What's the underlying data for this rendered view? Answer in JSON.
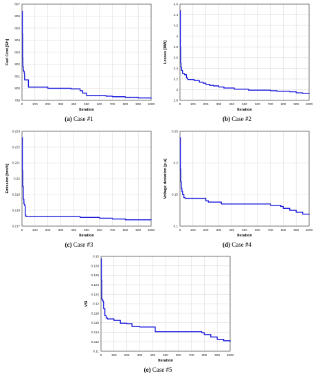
{
  "colors": {
    "line": "#1a1adc",
    "grid": "#d9d9d9",
    "axis": "#555555"
  },
  "chart_data": [
    {
      "type": "line",
      "caption": {
        "label": "(a)",
        "text": " Case #1"
      },
      "xlabel": "Iteration",
      "ylabel": "Fuel Cost [$/h]",
      "xlim": [
        0,
        1000
      ],
      "ylim": [
        799,
        807
      ],
      "xticks": [
        "0",
        "100",
        "200",
        "300",
        "400",
        "500",
        "600",
        "700",
        "800",
        "900",
        "1000"
      ],
      "yticks": [
        "799",
        "800",
        "801",
        "802",
        "803",
        "804",
        "805",
        "806",
        "807"
      ],
      "series": [
        {
          "x": [
            1,
            3,
            5,
            7,
            10,
            13,
            16,
            18,
            20,
            25,
            30,
            40,
            50,
            80,
            150,
            200,
            300,
            380,
            400,
            450,
            470,
            480,
            500,
            600,
            650,
            700,
            800,
            900,
            1000
          ],
          "y": [
            806.4,
            804.5,
            802.5,
            801.8,
            801.5,
            801.4,
            801.4,
            801.2,
            800.7,
            800.7,
            800.7,
            800.7,
            800.1,
            800.1,
            800.1,
            800.0,
            800.0,
            799.95,
            799.95,
            799.8,
            799.6,
            799.6,
            799.4,
            799.4,
            799.35,
            799.3,
            799.25,
            799.2,
            799.15
          ]
        }
      ]
    },
    {
      "type": "line",
      "caption": {
        "label": "(b)",
        "text": " Case #2"
      },
      "xlabel": "Iteration",
      "ylabel": "Losses [MW]",
      "xlim": [
        0,
        1000
      ],
      "ylim": [
        2.8,
        4.6
      ],
      "xticks": [
        "0",
        "100",
        "200",
        "300",
        "400",
        "500",
        "600",
        "700",
        "800",
        "900",
        "1000"
      ],
      "yticks": [
        "2.8",
        "3",
        "3.2",
        "3.4",
        "3.6",
        "3.8",
        "4",
        "4.2",
        "4.4",
        "4.6"
      ],
      "series": [
        {
          "x": [
            1,
            3,
            5,
            8,
            12,
            20,
            35,
            50,
            60,
            100,
            110,
            150,
            180,
            200,
            230,
            260,
            300,
            340,
            420,
            500,
            530,
            600,
            700,
            750,
            850,
            900,
            950,
            1000
          ],
          "y": [
            4.48,
            3.8,
            3.5,
            3.42,
            3.36,
            3.3,
            3.28,
            3.22,
            3.19,
            3.19,
            3.17,
            3.14,
            3.12,
            3.1,
            3.08,
            3.07,
            3.05,
            3.03,
            3.01,
            3.01,
            2.99,
            2.99,
            2.98,
            2.97,
            2.96,
            2.94,
            2.93,
            2.92
          ]
        }
      ]
    },
    {
      "type": "line",
      "caption": {
        "label": "(c)",
        "text": " Case #3"
      },
      "xlabel": "Iteration",
      "ylabel": "Emission [ton/h]",
      "xlim": [
        0,
        1000
      ],
      "ylim": [
        0.217,
        0.223
      ],
      "xticks": [
        "0",
        "100",
        "200",
        "300",
        "400",
        "500",
        "600",
        "700",
        "800",
        "900",
        "1000"
      ],
      "yticks": [
        "0.217",
        "0.218",
        "0.219",
        "0.22",
        "0.221",
        "0.222",
        "0.223"
      ],
      "series": [
        {
          "x": [
            1,
            3,
            6,
            10,
            15,
            20,
            25,
            30,
            100,
            200,
            300,
            400,
            450,
            500,
            600,
            700,
            800,
            900,
            1000
          ],
          "y": [
            0.2226,
            0.2205,
            0.2195,
            0.2187,
            0.2184,
            0.2183,
            0.2177,
            0.2176,
            0.2176,
            0.2176,
            0.2176,
            0.2176,
            0.21755,
            0.21755,
            0.2175,
            0.21745,
            0.2174,
            0.2174,
            0.21738
          ]
        }
      ]
    },
    {
      "type": "line",
      "caption": {
        "label": "(d)",
        "text": " Case #4"
      },
      "xlabel": "Iteration",
      "ylabel": "Voltage deviation [p.u]",
      "xlim": [
        0,
        1000
      ],
      "ylim": [
        0.1,
        0.25
      ],
      "xticks": [
        "0",
        "100",
        "200",
        "300",
        "400",
        "500",
        "600",
        "700",
        "800",
        "900",
        "1000"
      ],
      "yticks": [
        "0.1",
        "0.15",
        "0.2",
        "0.25"
      ],
      "series": [
        {
          "x": [
            1,
            3,
            6,
            10,
            15,
            20,
            30,
            40,
            100,
            150,
            200,
            220,
            300,
            320,
            400,
            500,
            600,
            700,
            750,
            780,
            800,
            850,
            900,
            950,
            1000
          ],
          "y": [
            0.24,
            0.19,
            0.17,
            0.16,
            0.155,
            0.15,
            0.145,
            0.144,
            0.144,
            0.144,
            0.14,
            0.138,
            0.138,
            0.135,
            0.135,
            0.135,
            0.135,
            0.133,
            0.133,
            0.131,
            0.128,
            0.125,
            0.122,
            0.119,
            0.118
          ]
        }
      ]
    },
    {
      "type": "line",
      "caption": {
        "label": "(e)",
        "text": " Case #5"
      },
      "xlabel": "Iteration",
      "ylabel": "VSI",
      "xlim": [
        0,
        1000
      ],
      "ylim": [
        0.11,
        0.13
      ],
      "xticks": [
        "0",
        "100",
        "200",
        "300",
        "400",
        "500",
        "600",
        "700",
        "800",
        "900",
        "1000"
      ],
      "yticks": [
        "0.11",
        "0.112",
        "0.114",
        "0.116",
        "0.118",
        "0.12",
        "0.122",
        "0.124",
        "0.126",
        "0.128",
        "0.13"
      ],
      "series": [
        {
          "x": [
            1,
            3,
            6,
            10,
            15,
            20,
            30,
            40,
            50,
            100,
            140,
            150,
            200,
            240,
            300,
            400,
            420,
            500,
            600,
            700,
            780,
            800,
            850,
            900,
            950,
            1000
          ],
          "y": [
            0.1295,
            0.125,
            0.121,
            0.1208,
            0.1205,
            0.119,
            0.1175,
            0.117,
            0.1168,
            0.1165,
            0.1165,
            0.1159,
            0.1158,
            0.1152,
            0.1151,
            0.1151,
            0.1141,
            0.1141,
            0.1141,
            0.1141,
            0.1139,
            0.1135,
            0.113,
            0.1125,
            0.1122,
            0.112
          ]
        }
      ]
    }
  ]
}
